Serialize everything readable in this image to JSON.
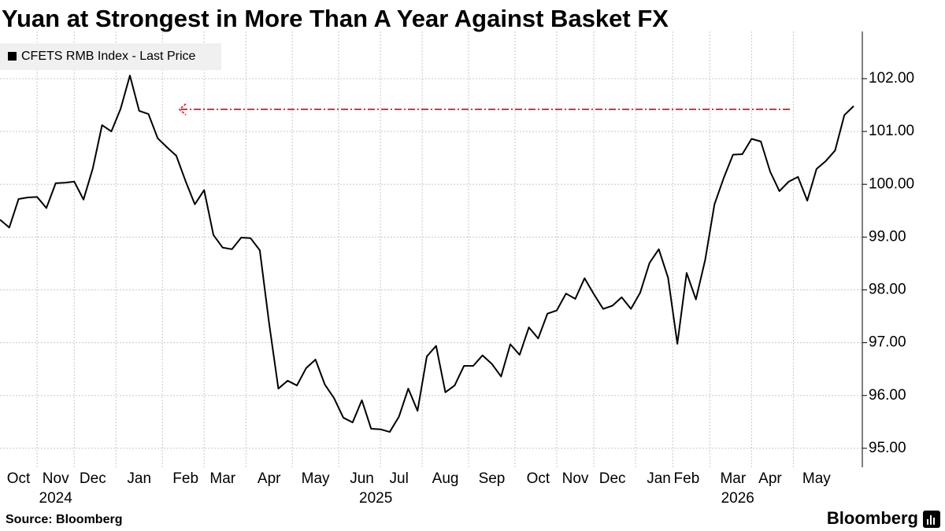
{
  "chart_data": {
    "type": "line",
    "title": "Yuan at Strongest in More Than A Year Against Basket FX",
    "source": "Source: Bloomberg",
    "brand": "Bloomberg",
    "categories": [
      null,
      null,
      "Oct",
      null,
      null,
      null,
      "Nov",
      null,
      null,
      null,
      "Dec",
      null,
      null,
      null,
      null,
      "Jan",
      null,
      null,
      null,
      null,
      "Feb",
      null,
      null,
      null,
      "Mar",
      null,
      null,
      null,
      null,
      "Apr",
      null,
      null,
      null,
      null,
      "May",
      null,
      null,
      null,
      null,
      "Jun",
      null,
      null,
      null,
      "Jul",
      null,
      null,
      null,
      null,
      "Aug",
      null,
      null,
      null,
      null,
      "Sep",
      null,
      null,
      null,
      null,
      "Oct",
      null,
      null,
      null,
      "Nov",
      null,
      null,
      null,
      "Dec",
      null,
      null,
      null,
      null,
      "Jan",
      null,
      null,
      "Feb",
      null,
      null,
      null,
      null,
      "Mar",
      null,
      null,
      null,
      "Apr",
      null,
      null,
      null,
      null,
      "May",
      null,
      null,
      null,
      null
    ],
    "years": [
      "2024",
      "2025",
      "2026"
    ],
    "series": [
      {
        "name": "CFETS RMB Index - Last Price",
        "color": "#000000",
        "values": [
          99.33,
          99.18,
          99.72,
          99.75,
          99.76,
          99.55,
          100.02,
          100.03,
          100.05,
          99.71,
          100.3,
          101.12,
          101.0,
          101.43,
          102.06,
          101.39,
          101.33,
          100.87,
          100.7,
          100.54,
          100.06,
          99.62,
          99.89,
          99.04,
          98.8,
          98.77,
          98.99,
          98.98,
          98.75,
          97.37,
          96.13,
          96.28,
          96.19,
          96.52,
          96.68,
          96.21,
          95.95,
          95.58,
          95.49,
          95.91,
          95.37,
          95.36,
          95.31,
          95.6,
          96.13,
          95.71,
          96.74,
          96.94,
          96.06,
          96.19,
          96.56,
          96.56,
          96.76,
          96.6,
          96.36,
          96.97,
          96.77,
          97.29,
          97.08,
          97.55,
          97.61,
          97.93,
          97.83,
          98.22,
          97.92,
          97.64,
          97.7,
          97.86,
          97.64,
          97.95,
          98.51,
          98.77,
          98.23,
          96.98,
          98.32,
          97.82,
          98.57,
          99.62,
          100.12,
          100.56,
          100.57,
          100.86,
          100.81,
          100.24,
          99.87,
          100.05,
          100.14,
          99.69,
          100.29,
          100.44,
          100.64,
          101.31,
          101.48
        ]
      }
    ],
    "ylim": [
      94.7,
      102.7
    ],
    "yticks": [
      {
        "value": 95,
        "label": "95.00"
      },
      {
        "value": 96,
        "label": "96.00"
      },
      {
        "value": 97,
        "label": "97.00"
      },
      {
        "value": 98,
        "label": "98.00"
      },
      {
        "value": 99,
        "label": "99.00"
      },
      {
        "value": 100,
        "label": "100.00"
      },
      {
        "value": 101,
        "label": "101.00"
      },
      {
        "value": 102,
        "label": "102.00"
      }
    ],
    "grid": true,
    "legend": "top-left"
  }
}
